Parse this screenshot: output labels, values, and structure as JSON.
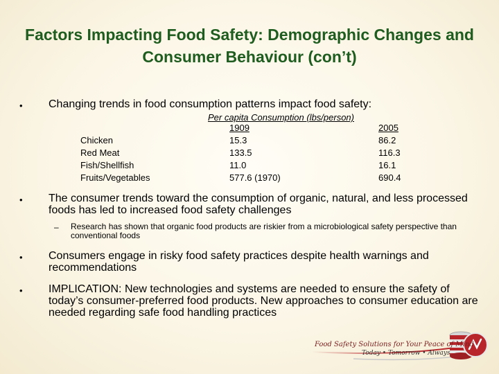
{
  "title": "Factors Impacting Food Safety: Demographic Changes and Consumer Behaviour (con’t)",
  "bullet_glyph": "•",
  "dash_glyph": "–",
  "bullets": [
    "Changing trends in food consumption patterns impact food safety:",
    "The consumer trends toward the consumption of organic, natural, and less processed foods has led to increased food safety challenges",
    "Consumers engage in risky food safety practices despite health warnings and recommendations",
    "IMPLICATION:  New technologies and systems are needed to ensure the safety of today’s consumer-preferred food products.  New approaches to consumer education are needed regarding safe food handling practices"
  ],
  "sub_bullet": "Research has shown that organic food products are riskier from a microbiological safety perspective than conventional foods",
  "consumption_table": {
    "header": "Per capita Consumption (lbs/person)",
    "year_1": "1909",
    "year_2": "2005",
    "rows": [
      {
        "item": "Chicken",
        "v1909": "15.3",
        "v2005": "86.2"
      },
      {
        "item": "Red Meat",
        "v1909": "133.5",
        "v2005": "116.3"
      },
      {
        "item": "Fish/Shellfish",
        "v1909": "11.0",
        "v2005": "16.1"
      },
      {
        "item": "Fruits/Vegetables",
        "v1909": "577.6 (1970)",
        "v2005": "690.4"
      }
    ]
  },
  "logo": {
    "tagline": "Food Safety Solutions for Your Peace of Mind",
    "subline": "Today • Tomorrow • Always",
    "icon": "stacked-discs-logo-icon",
    "colors": {
      "red": "#b8262b",
      "silver": "#c9c9c9",
      "tagline": "#7a1d1d"
    }
  }
}
